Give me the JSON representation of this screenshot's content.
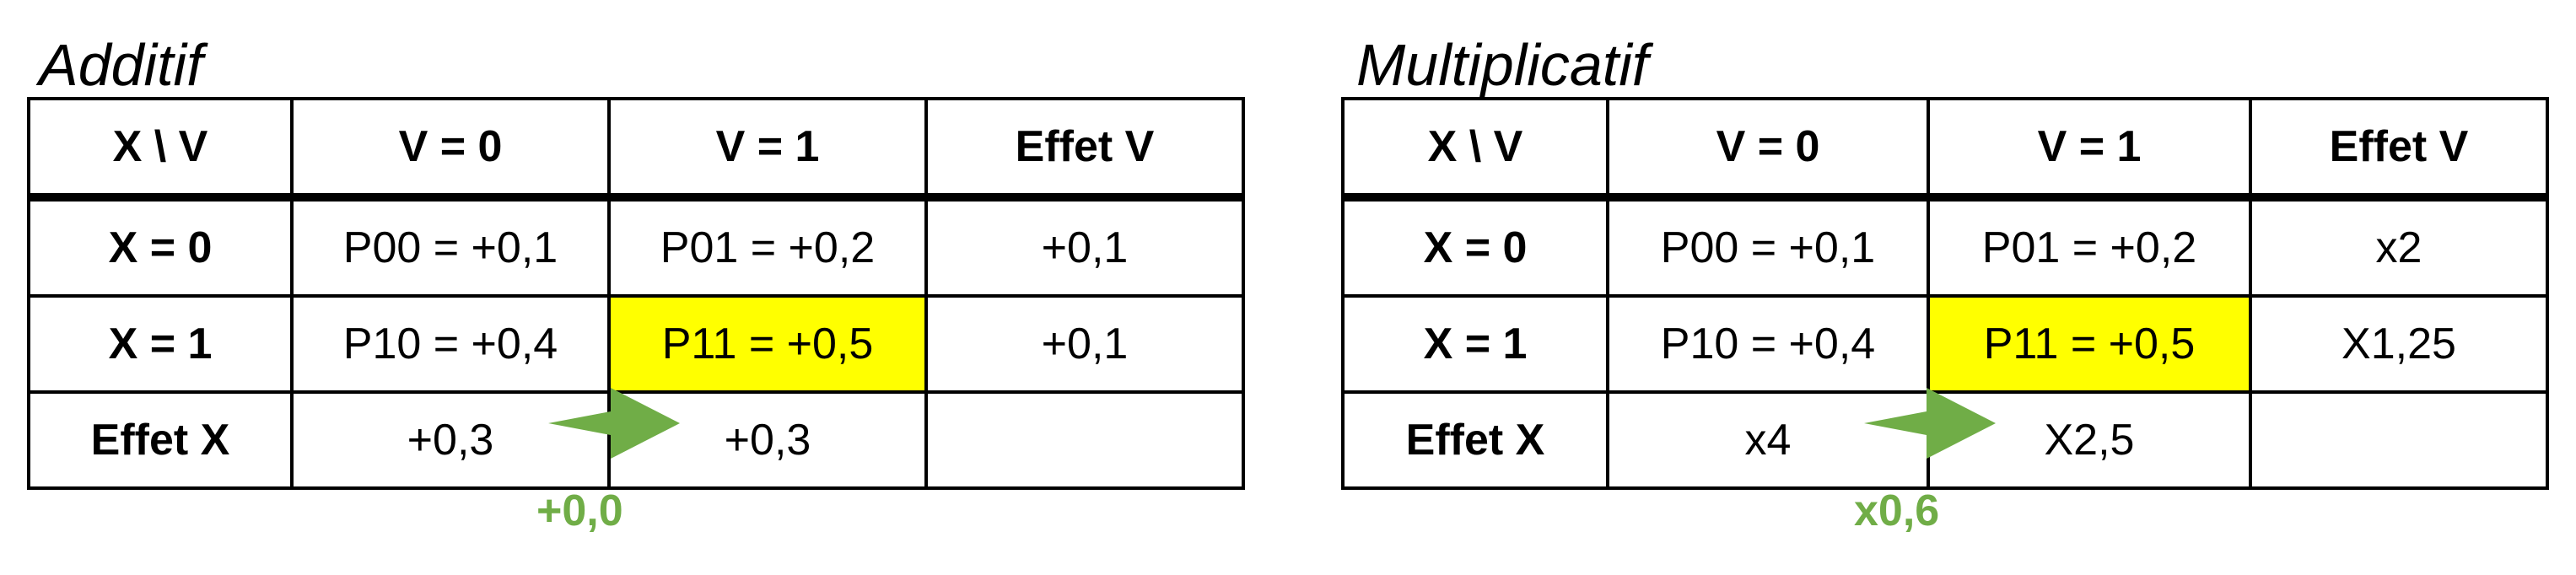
{
  "accent_color": "#70ad47",
  "highlight_color": "#ffff00",
  "panels": [
    {
      "title": "Additif",
      "header": [
        "X \\ V",
        "V = 0",
        "V = 1",
        "Effet V"
      ],
      "rows": [
        [
          "X = 0",
          "P00 = +0,1",
          "P01 = +0,2",
          "+0,1"
        ],
        [
          "X = 1",
          "P10 = +0,4",
          "P11 = +0,5",
          "+0,1"
        ],
        [
          "Effet X",
          "+0,3",
          "+0,3",
          ""
        ]
      ],
      "difference": "+0,0"
    },
    {
      "title": "Multiplicatif",
      "header": [
        "X \\ V",
        "V = 0",
        "V = 1",
        "Effet V"
      ],
      "rows": [
        [
          "X = 0",
          "P00 = +0,1",
          "P01 = +0,2",
          "x2"
        ],
        [
          "X = 1",
          "P10 = +0,4",
          "P11 = +0,5",
          "X1,25"
        ],
        [
          "Effet X",
          "x4",
          "X2,5",
          ""
        ]
      ],
      "difference": "x0,6"
    }
  ]
}
